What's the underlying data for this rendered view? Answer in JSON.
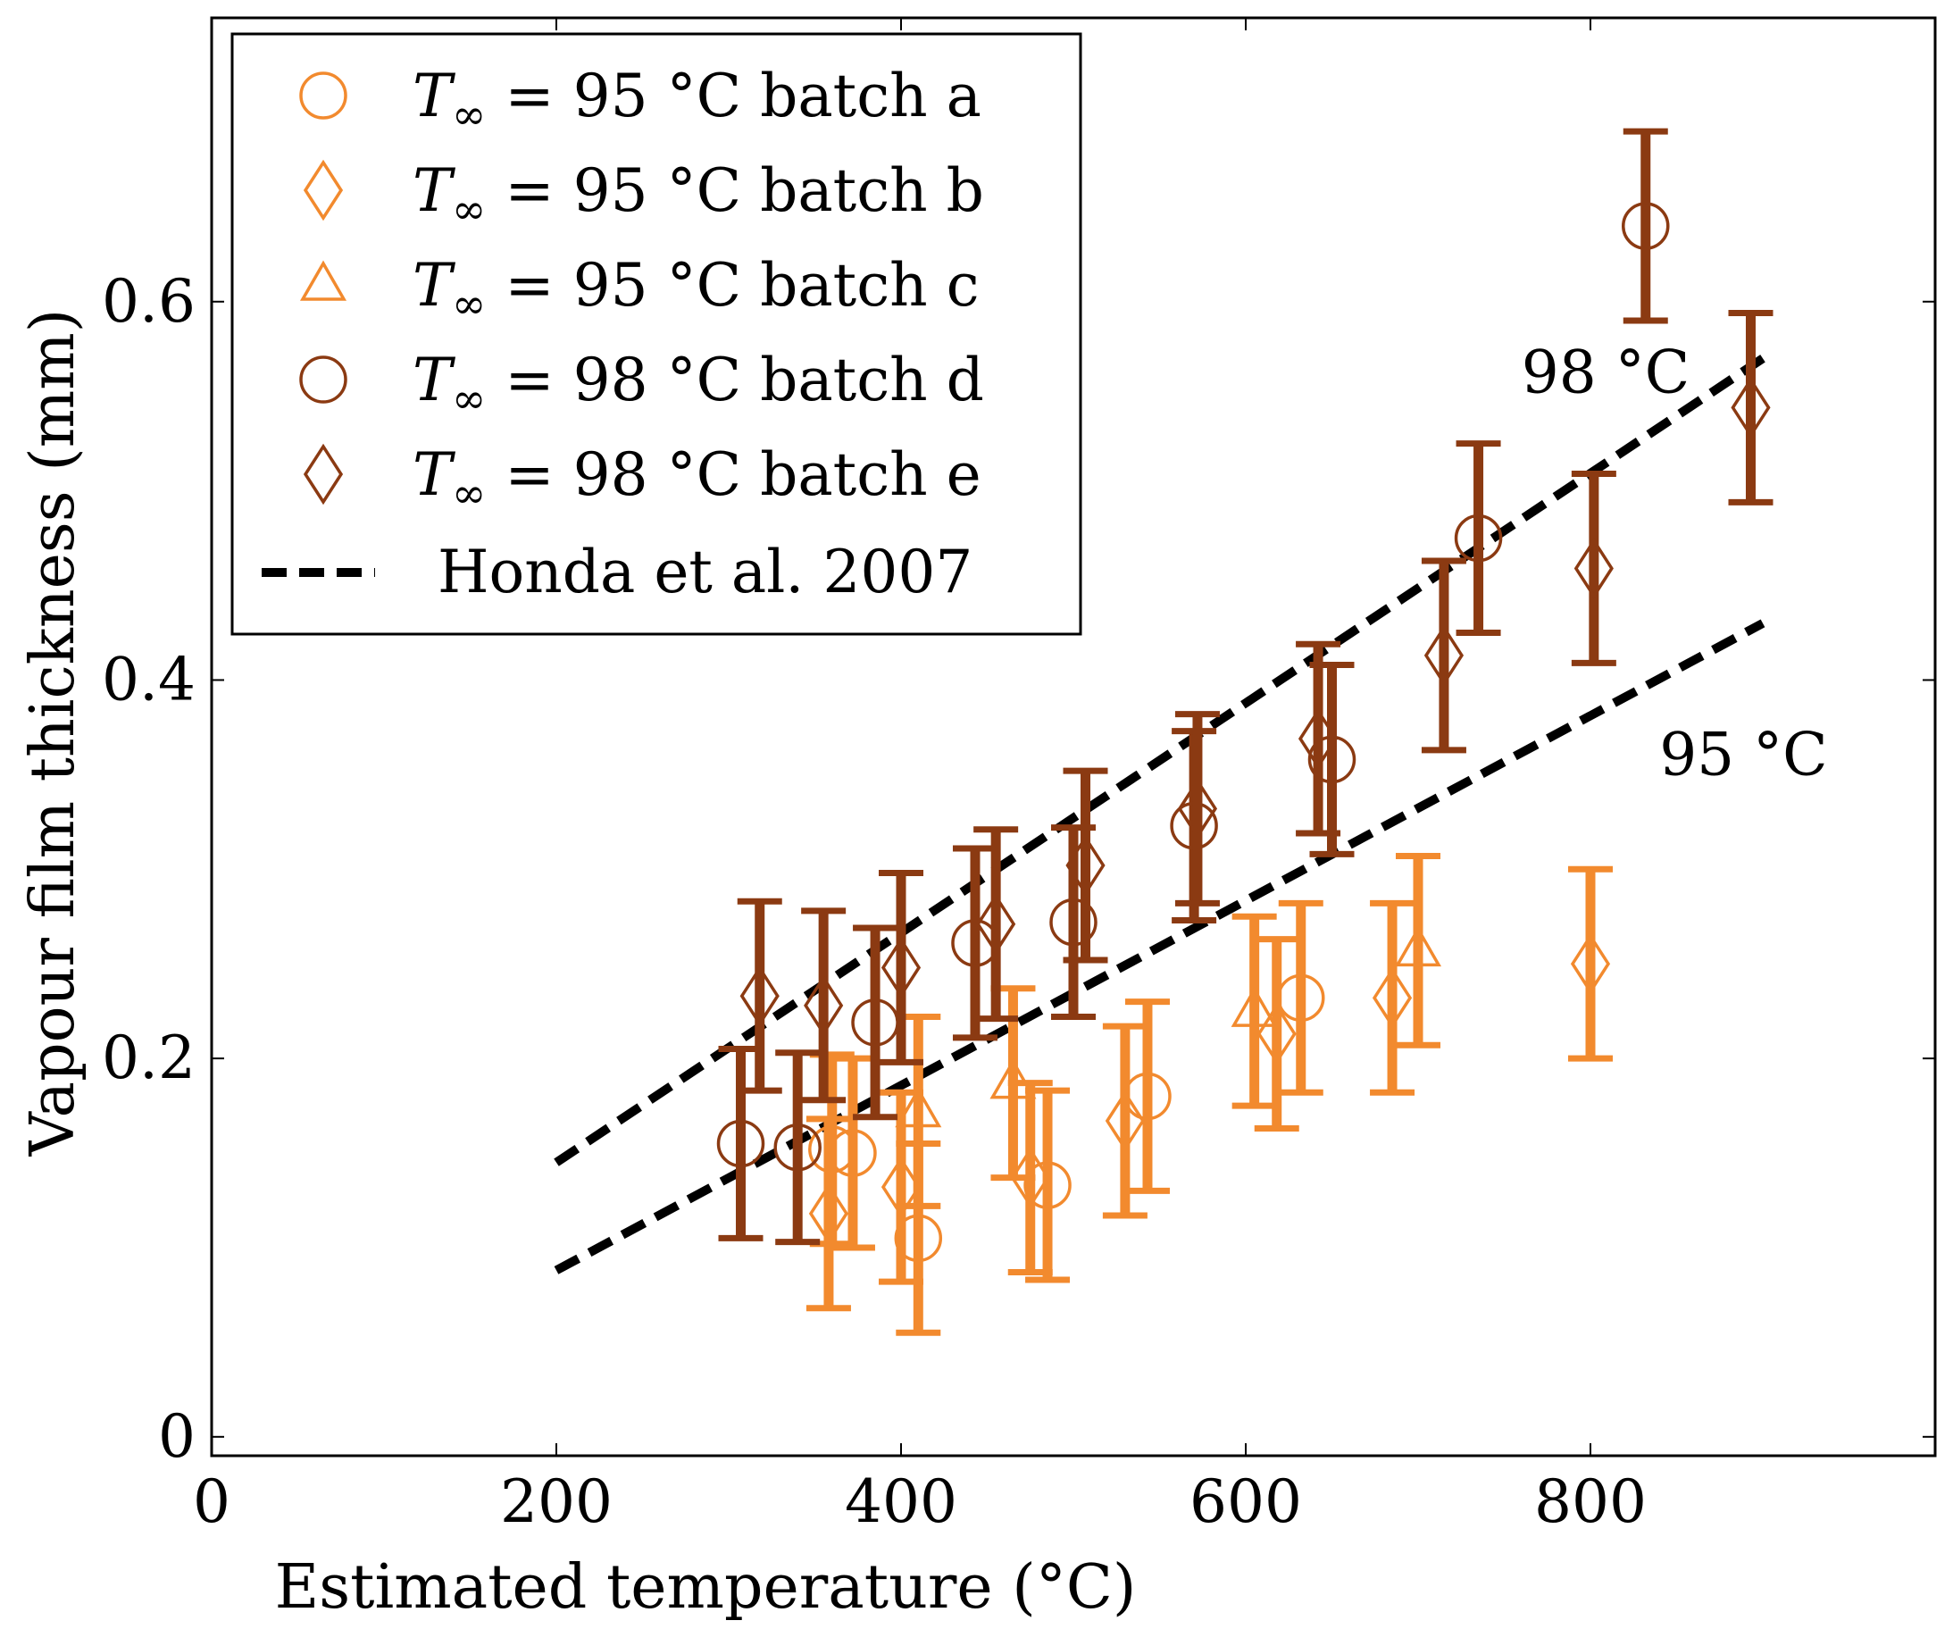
{
  "chart_data": {
    "type": "scatter",
    "title": "",
    "xlabel": "Estimated temperature (°C)",
    "ylabel": "Vapour film thickness (mm)",
    "xlim": [
      0,
      1000
    ],
    "ylim": [
      -0.01,
      0.75
    ],
    "xticks": [
      0,
      200,
      400,
      600,
      800
    ],
    "yticks": [
      0,
      0.2,
      0.4,
      0.6
    ],
    "xtick_labels": [
      "0",
      "200",
      "400",
      "600",
      "800"
    ],
    "ytick_labels": [
      "0",
      "0.2",
      "0.4",
      "0.6"
    ],
    "grid": false,
    "legend_position": "top-left",
    "colors": {
      "light": "#F28A2E",
      "dark": "#8B3A12",
      "line": "#000000"
    },
    "series": [
      {
        "name": "T∞ = 95 °C batch a",
        "legend_temp": "95",
        "legend_batch": "a",
        "marker": "circle",
        "color": "#F28A2E",
        "points": [
          {
            "x": 360,
            "y": 0.152,
            "err": 0.05
          },
          {
            "x": 372,
            "y": 0.15,
            "err": 0.05
          },
          {
            "x": 410,
            "y": 0.105,
            "err": 0.05
          },
          {
            "x": 485,
            "y": 0.133,
            "err": 0.05
          },
          {
            "x": 543,
            "y": 0.18,
            "err": 0.05
          },
          {
            "x": 632,
            "y": 0.232,
            "err": 0.05
          }
        ]
      },
      {
        "name": "T∞ = 95 °C batch b",
        "legend_temp": "95",
        "legend_batch": "b",
        "marker": "diamond",
        "color": "#F28A2E",
        "points": [
          {
            "x": 358,
            "y": 0.118,
            "err": 0.05
          },
          {
            "x": 400,
            "y": 0.132,
            "err": 0.05
          },
          {
            "x": 475,
            "y": 0.137,
            "err": 0.05
          },
          {
            "x": 530,
            "y": 0.167,
            "err": 0.05
          },
          {
            "x": 618,
            "y": 0.213,
            "err": 0.05
          },
          {
            "x": 685,
            "y": 0.232,
            "err": 0.05
          },
          {
            "x": 800,
            "y": 0.25,
            "err": 0.05
          }
        ]
      },
      {
        "name": "T∞ = 95 °C batch c",
        "legend_temp": "95",
        "legend_batch": "c",
        "marker": "triangle",
        "color": "#F28A2E",
        "points": [
          {
            "x": 410,
            "y": 0.172,
            "err": 0.05
          },
          {
            "x": 465,
            "y": 0.187,
            "err": 0.05
          },
          {
            "x": 605,
            "y": 0.225,
            "err": 0.05
          },
          {
            "x": 700,
            "y": 0.257,
            "err": 0.05
          }
        ]
      },
      {
        "name": "T∞ = 98 °C batch d",
        "legend_temp": "98",
        "legend_batch": "d",
        "marker": "circle",
        "color": "#8B3A12",
        "points": [
          {
            "x": 307,
            "y": 0.155,
            "err": 0.05
          },
          {
            "x": 340,
            "y": 0.153,
            "err": 0.05
          },
          {
            "x": 385,
            "y": 0.219,
            "err": 0.05
          },
          {
            "x": 443,
            "y": 0.261,
            "err": 0.05
          },
          {
            "x": 500,
            "y": 0.272,
            "err": 0.05
          },
          {
            "x": 570,
            "y": 0.323,
            "err": 0.05
          },
          {
            "x": 650,
            "y": 0.358,
            "err": 0.05
          },
          {
            "x": 735,
            "y": 0.475,
            "err": 0.05
          },
          {
            "x": 832,
            "y": 0.64,
            "err": 0.05
          }
        ]
      },
      {
        "name": "T∞ = 98 °C batch e",
        "legend_temp": "98",
        "legend_batch": "e",
        "marker": "diamond",
        "color": "#8B3A12",
        "points": [
          {
            "x": 318,
            "y": 0.233,
            "err": 0.05
          },
          {
            "x": 355,
            "y": 0.228,
            "err": 0.05
          },
          {
            "x": 400,
            "y": 0.248,
            "err": 0.05
          },
          {
            "x": 455,
            "y": 0.271,
            "err": 0.05
          },
          {
            "x": 507,
            "y": 0.302,
            "err": 0.05
          },
          {
            "x": 572,
            "y": 0.332,
            "err": 0.05
          },
          {
            "x": 642,
            "y": 0.369,
            "err": 0.05
          },
          {
            "x": 715,
            "y": 0.413,
            "err": 0.05
          },
          {
            "x": 802,
            "y": 0.459,
            "err": 0.05
          },
          {
            "x": 893,
            "y": 0.544,
            "err": 0.05
          }
        ]
      }
    ],
    "reference_lines": {
      "name": "Honda et al. 2007",
      "lines": [
        {
          "label": "98 °C",
          "x": [
            200,
            900
          ],
          "y": [
            0.145,
            0.57
          ]
        },
        {
          "label": "95 °C",
          "x": [
            200,
            900
          ],
          "y": [
            0.088,
            0.43
          ]
        }
      ]
    },
    "annotations": [
      {
        "text": "98 °C",
        "x": 760,
        "y": 0.552
      },
      {
        "text": "95 °C",
        "x": 840,
        "y": 0.35
      }
    ]
  }
}
